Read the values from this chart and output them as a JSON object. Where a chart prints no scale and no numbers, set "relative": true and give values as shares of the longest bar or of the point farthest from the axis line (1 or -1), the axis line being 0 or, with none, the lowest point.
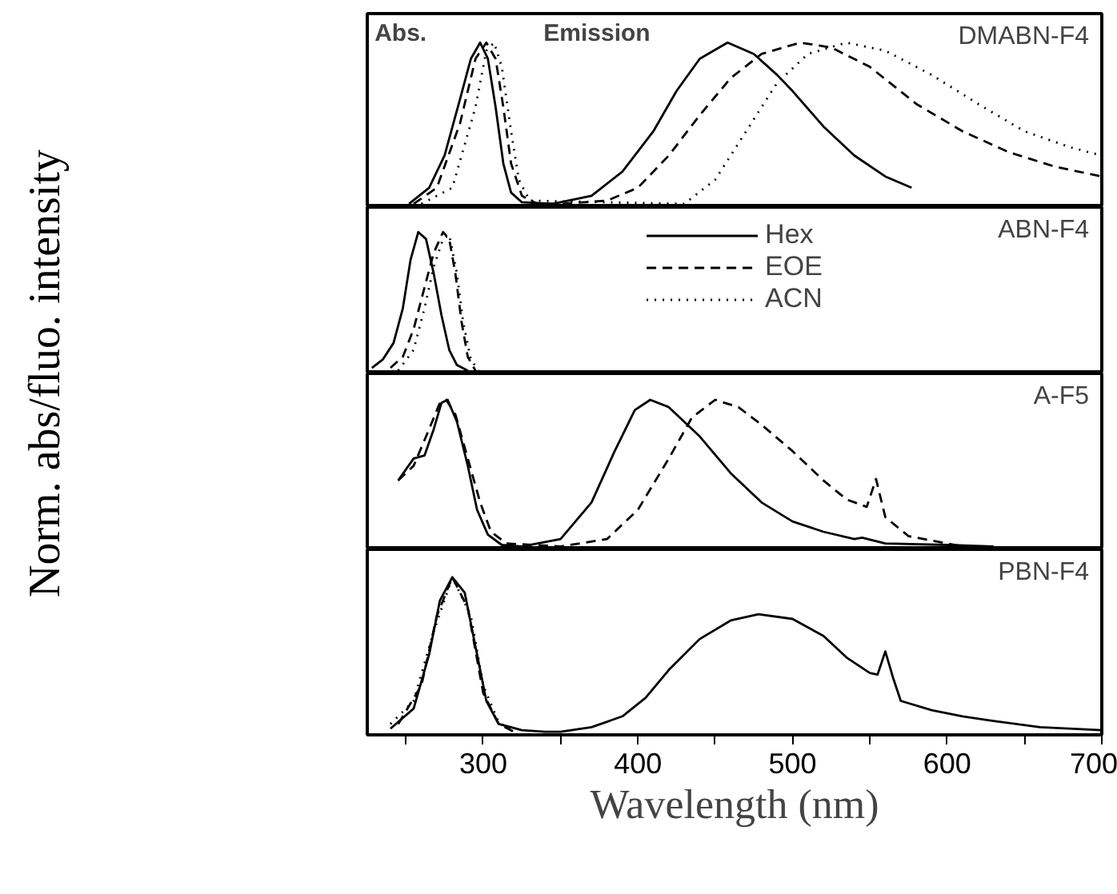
{
  "chart_data": [
    {
      "type": "line",
      "title": "DMABN-F4",
      "ylabel": "Norm. abs/fluo. intensity",
      "annotations": [
        "Abs.",
        "Emission"
      ],
      "relative": true,
      "xlim": [
        225,
        700
      ],
      "tick_labels": false,
      "grid": false,
      "legend": false,
      "marker": "none",
      "series": [
        {
          "color": "#000000",
          "line_style": "solid",
          "x": [
            252,
            265,
            275,
            285,
            292,
            298,
            303,
            308,
            313,
            318,
            325,
            345,
            370,
            390,
            410,
            425,
            440,
            458,
            475,
            490,
            500,
            520,
            540,
            560,
            577
          ],
          "values": [
            0,
            0.1,
            0.3,
            0.65,
            0.9,
            1,
            0.9,
            0.6,
            0.25,
            0.07,
            0.01,
            0,
            0.05,
            0.2,
            0.45,
            0.7,
            0.9,
            1,
            0.93,
            0.8,
            0.7,
            0.48,
            0.3,
            0.17,
            0.1
          ]
        },
        {
          "color": "#000000",
          "line_style": "dashed",
          "x": [
            255,
            270,
            285,
            295,
            302,
            308,
            313,
            318,
            325,
            335,
            350,
            380,
            400,
            420,
            440,
            460,
            480,
            505,
            525,
            550,
            580,
            610,
            640,
            670,
            700
          ],
          "values": [
            0,
            0.1,
            0.5,
            0.9,
            1,
            0.9,
            0.6,
            0.25,
            0.05,
            0,
            0,
            0.02,
            0.1,
            0.3,
            0.55,
            0.78,
            0.93,
            1,
            0.97,
            0.85,
            0.62,
            0.45,
            0.32,
            0.23,
            0.17
          ]
        },
        {
          "color": "#000000",
          "line_style": "dotted",
          "x": [
            260,
            280,
            295,
            302,
            307,
            312,
            318,
            323,
            330,
            430,
            450,
            470,
            490,
            510,
            535,
            560,
            590,
            620,
            650,
            680,
            700
          ],
          "values": [
            0,
            0.1,
            0.6,
            0.95,
            1,
            0.85,
            0.45,
            0.15,
            0.02,
            0,
            0.15,
            0.45,
            0.75,
            0.93,
            1,
            0.95,
            0.8,
            0.62,
            0.45,
            0.35,
            0.3
          ]
        }
      ]
    },
    {
      "type": "line",
      "title": "ABN-F4",
      "relative": true,
      "xlim": [
        225,
        700
      ],
      "tick_labels": false,
      "grid": false,
      "legend": "top",
      "marker": "none",
      "series": [
        {
          "name": "Hex",
          "color": "#000000",
          "line_style": "solid",
          "x": [
            228,
            235,
            242,
            248,
            253,
            258,
            263,
            268,
            273,
            278,
            283,
            290
          ],
          "values": [
            0.02,
            0.08,
            0.2,
            0.45,
            0.8,
            1,
            0.95,
            0.7,
            0.4,
            0.15,
            0.04,
            0
          ]
        },
        {
          "name": "EOE",
          "color": "#000000",
          "line_style": "dashed",
          "x": [
            240,
            248,
            255,
            262,
            268,
            274,
            278,
            282,
            286,
            290,
            295
          ],
          "values": [
            0.02,
            0.1,
            0.3,
            0.6,
            0.85,
            1,
            0.95,
            0.7,
            0.35,
            0.1,
            0
          ]
        },
        {
          "name": "ACN",
          "color": "#000000",
          "line_style": "dotted",
          "x": [
            245,
            255,
            262,
            268,
            274,
            278,
            283,
            287,
            292,
            297
          ],
          "values": [
            0,
            0.15,
            0.45,
            0.75,
            0.95,
            0.98,
            0.7,
            0.35,
            0.08,
            0
          ]
        }
      ]
    },
    {
      "type": "line",
      "title": "A-F5",
      "relative": true,
      "xlim": [
        225,
        700
      ],
      "tick_labels": false,
      "grid": false,
      "legend": false,
      "marker": "none",
      "series": [
        {
          "color": "#000000",
          "line_style": "solid",
          "x": [
            245,
            255,
            262,
            268,
            273,
            277,
            283,
            290,
            296,
            303,
            312,
            325,
            350,
            370,
            385,
            398,
            408,
            420,
            440,
            460,
            480,
            500,
            520,
            540,
            545,
            560,
            600,
            630
          ],
          "values": [
            0.45,
            0.6,
            0.62,
            0.8,
            0.98,
            1,
            0.85,
            0.55,
            0.25,
            0.08,
            0.01,
            0,
            0.05,
            0.3,
            0.65,
            0.93,
            1,
            0.95,
            0.75,
            0.5,
            0.3,
            0.17,
            0.1,
            0.05,
            0.06,
            0.02,
            0.01,
            0
          ]
        },
        {
          "color": "#000000",
          "line_style": "dashed",
          "x": [
            245,
            255,
            265,
            272,
            276,
            282,
            290,
            298,
            305,
            315,
            350,
            380,
            400,
            420,
            435,
            450,
            465,
            480,
            500,
            520,
            535,
            548,
            554,
            560,
            575,
            590,
            600,
            610
          ],
          "values": [
            0.45,
            0.55,
            0.8,
            0.98,
            1,
            0.9,
            0.6,
            0.3,
            0.1,
            0.02,
            0,
            0.05,
            0.25,
            0.6,
            0.88,
            1,
            0.95,
            0.83,
            0.65,
            0.45,
            0.32,
            0.27,
            0.46,
            0.2,
            0.07,
            0.04,
            0.02,
            0
          ]
        }
      ]
    },
    {
      "type": "line",
      "title": "PBN-F4",
      "xlabel": "Wavelength (nm)",
      "relative": true,
      "xlim": [
        225,
        700
      ],
      "xticks": [
        {
          "value": 250,
          "label": null
        },
        300,
        {
          "value": 350,
          "label": null
        },
        400,
        {
          "value": 450,
          "label": null
        },
        500,
        {
          "value": 550,
          "label": null
        },
        600,
        {
          "value": 650,
          "label": null
        },
        700
      ],
      "tick_labels": "x",
      "grid": false,
      "legend": false,
      "marker": "none",
      "series": [
        {
          "color": "#000000",
          "line_style": "solid",
          "x": [
            240,
            255,
            265,
            272,
            280,
            288,
            295,
            302,
            310,
            325,
            340,
            350,
            370,
            390,
            405,
            420,
            440,
            460,
            478,
            500,
            520,
            535,
            550,
            555,
            560,
            565,
            570,
            590,
            610,
            630,
            660,
            700
          ],
          "values": [
            0.02,
            0.15,
            0.5,
            0.85,
            1,
            0.9,
            0.55,
            0.2,
            0.05,
            0.01,
            0,
            0,
            0.03,
            0.1,
            0.22,
            0.4,
            0.6,
            0.72,
            0.76,
            0.73,
            0.62,
            0.48,
            0.38,
            0.37,
            0.52,
            0.35,
            0.2,
            0.14,
            0.1,
            0.07,
            0.03,
            0.01
          ]
        },
        {
          "color": "#000000",
          "line_style": "dashed",
          "x": [
            245,
            260,
            270,
            280,
            290,
            300,
            310,
            320
          ],
          "values": [
            0.05,
            0.3,
            0.75,
            1,
            0.8,
            0.25,
            0.05,
            0
          ]
        },
        {
          "color": "#000000",
          "line_style": "dotted",
          "x": [
            240,
            255,
            268,
            280,
            292,
            300,
            310,
            320
          ],
          "values": [
            0.05,
            0.2,
            0.65,
            1,
            0.75,
            0.3,
            0.06,
            0
          ]
        }
      ]
    }
  ]
}
